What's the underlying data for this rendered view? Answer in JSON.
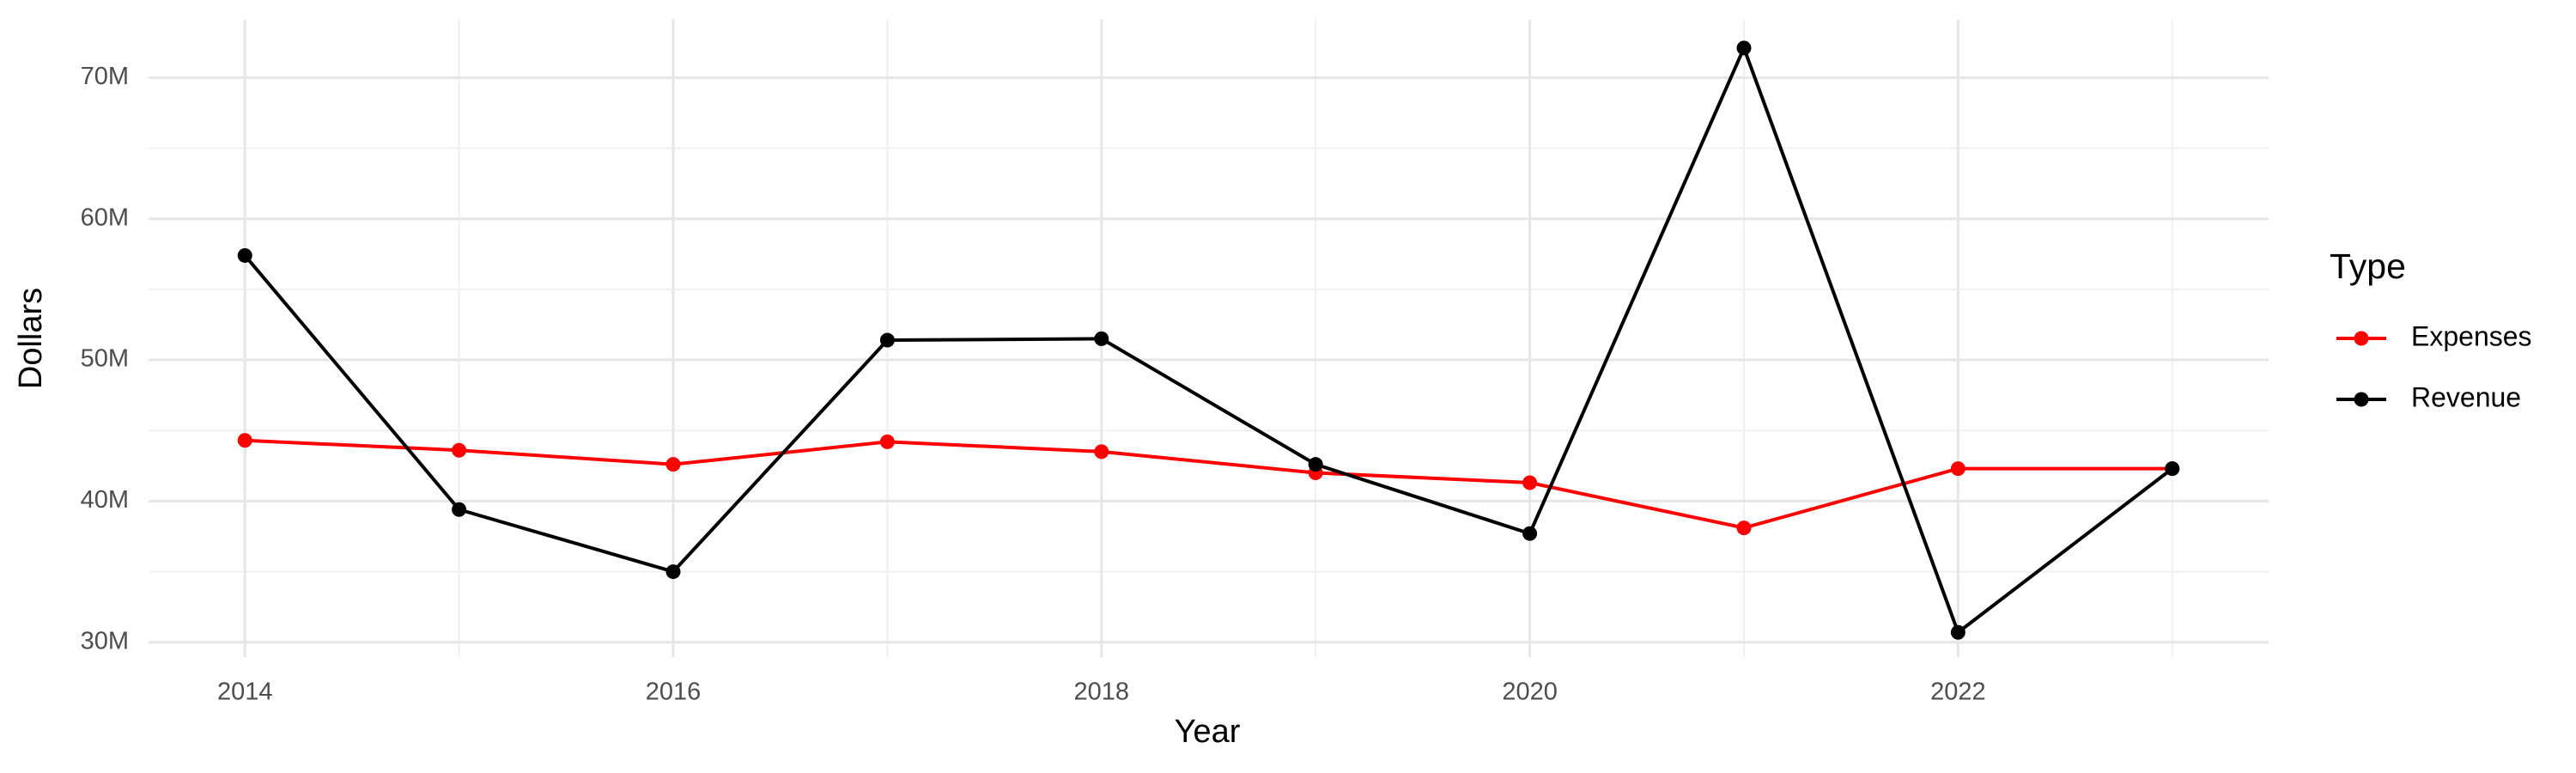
{
  "chart_data": {
    "type": "line",
    "x_label": "Year",
    "y_label": "Dollars",
    "legend_title": "Type",
    "x": [
      2014,
      2015,
      2016,
      2017,
      2018,
      2019,
      2020,
      2021,
      2022,
      2023
    ],
    "series": [
      {
        "name": "Expenses",
        "color": "#ff0000",
        "values": [
          44300000,
          43600000,
          42600000,
          44200000,
          43500000,
          42000000,
          41300000,
          38100000,
          42300000,
          42300000
        ]
      },
      {
        "name": "Revenue",
        "color": "#000000",
        "values": [
          57400000,
          39400000,
          35000000,
          51400000,
          51500000,
          42600000,
          37700000,
          72100000,
          30700000,
          42300000
        ]
      }
    ],
    "xlim": [
      2013.55,
      2023.45
    ],
    "xticks": [
      2014,
      2016,
      2018,
      2020,
      2022
    ],
    "ylim": [
      28950000,
      74100000
    ],
    "yticks": [
      {
        "value": 30000000,
        "label": "30M"
      },
      {
        "value": 40000000,
        "label": "40M"
      },
      {
        "value": 50000000,
        "label": "50M"
      },
      {
        "value": 60000000,
        "label": "60M"
      },
      {
        "value": 70000000,
        "label": "70M"
      }
    ],
    "grid": true,
    "legend_position": "right"
  }
}
